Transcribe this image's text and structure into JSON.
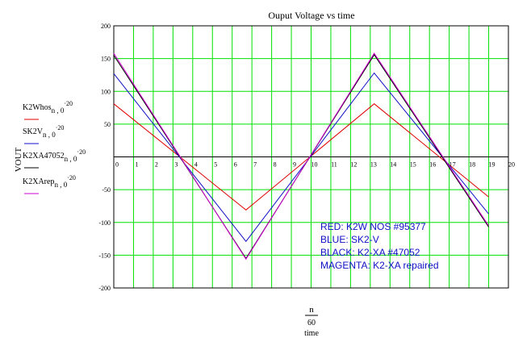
{
  "chart_data": {
    "type": "line",
    "title": "Ouput Voltage vs time",
    "ylabel": "VOUT",
    "xlabel": {
      "numerator": "n",
      "denominator": "60",
      "name": "time"
    },
    "xlim": [
      0,
      20
    ],
    "ylim": [
      -200,
      200
    ],
    "x_ticks": [
      0,
      1,
      2,
      3,
      4,
      5,
      6,
      7,
      8,
      9,
      10,
      11,
      12,
      13,
      14,
      15,
      16,
      17,
      18,
      19,
      20
    ],
    "y_ticks": [
      200,
      150,
      100,
      50,
      -50,
      -100,
      -150,
      -200
    ],
    "grid": true,
    "series": [
      {
        "legend_main": "K2Whos",
        "legend_sub": "n , 0",
        "legend_sup": "·20",
        "color": "#e00000",
        "points": [
          [
            0,
            81
          ],
          [
            6.7,
            -81
          ],
          [
            13.2,
            81
          ],
          [
            19,
            -61
          ]
        ]
      },
      {
        "legend_main": "SK2V",
        "legend_sub": "n , 0",
        "legend_sup": "·20",
        "color": "#1010c8",
        "points": [
          [
            0,
            127
          ],
          [
            6.7,
            -129
          ],
          [
            13.2,
            128
          ],
          [
            19,
            -87
          ]
        ]
      },
      {
        "legend_main": "K2XA47052",
        "legend_sub": "n , 0",
        "legend_sup": "·20",
        "color": "#000000",
        "points": [
          [
            0,
            155
          ],
          [
            6.7,
            -155
          ],
          [
            13.2,
            156
          ],
          [
            19,
            -107
          ]
        ]
      },
      {
        "legend_main": "K2XArep",
        "legend_sub": "n , 0",
        "legend_sup": "·20",
        "color": "#d000d0",
        "points": [
          [
            0,
            158
          ],
          [
            6.7,
            -156
          ],
          [
            13.2,
            158
          ],
          [
            19,
            -105
          ]
        ]
      }
    ],
    "annotations": [
      "RED: K2W NOS #95377",
      "BLUE: SK2-V",
      "BLACK: K2-XA #47052",
      "MAGENTA: K2-XA repaired"
    ],
    "annotation_color": "#1010c8"
  }
}
